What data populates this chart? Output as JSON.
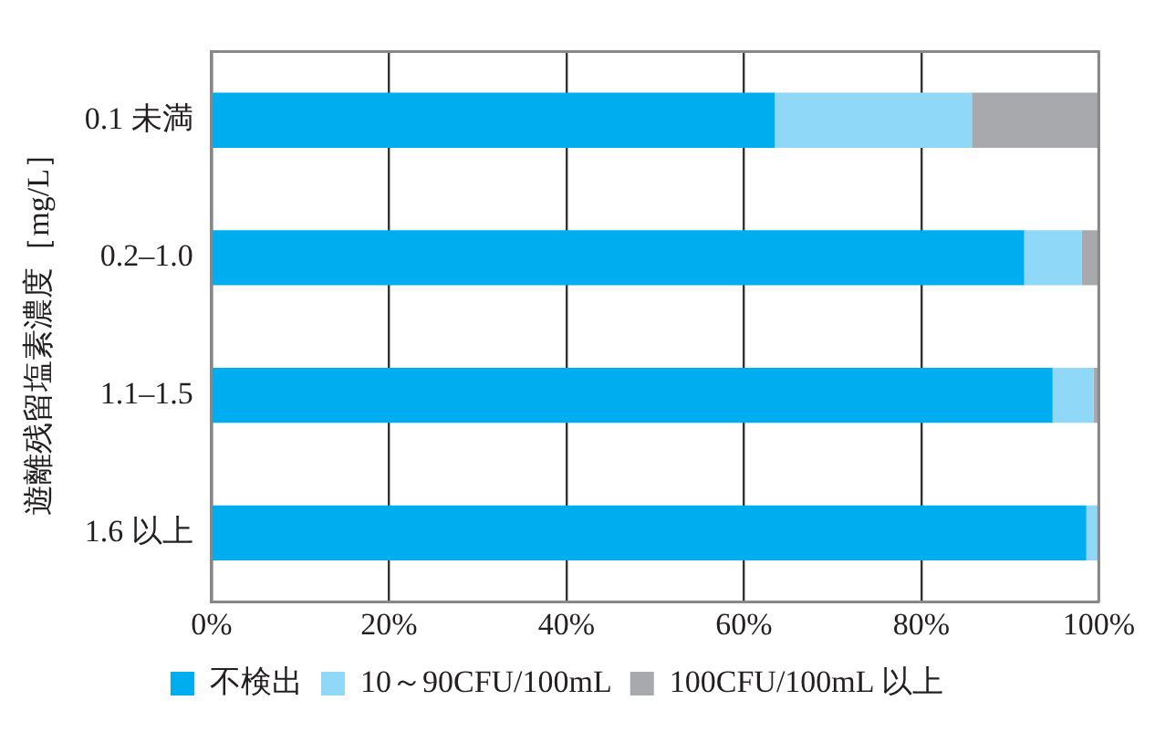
{
  "chart_data": {
    "type": "bar",
    "orientation": "horizontal",
    "stacked": true,
    "ylabel": "遊離残留塩素濃度［mg/L］",
    "categories": [
      "0.1 未満",
      "0.2–1.0",
      "1.1–1.5",
      "1.6 以上"
    ],
    "series": [
      {
        "name": "不検出",
        "color": "#00aeef",
        "values": [
          63.5,
          91.6,
          94.8,
          98.6
        ]
      },
      {
        "name": "10～90CFU/100mL",
        "color": "#8fd8f8",
        "values": [
          22.2,
          6.5,
          4.6,
          1.4
        ]
      },
      {
        "name": "100CFU/100mL 以上",
        "color": "#a7a9ac",
        "values": [
          14.3,
          1.9,
          0.6,
          0
        ]
      }
    ],
    "xlim": [
      0,
      100
    ],
    "xticks": [
      {
        "value": 0,
        "label": "0%"
      },
      {
        "value": 20,
        "label": "20%"
      },
      {
        "value": 40,
        "label": "40%"
      },
      {
        "value": 60,
        "label": "60%"
      },
      {
        "value": 80,
        "label": "80%"
      },
      {
        "value": 100,
        "label": "100%"
      }
    ],
    "grid": "x",
    "legend": "bottom"
  }
}
